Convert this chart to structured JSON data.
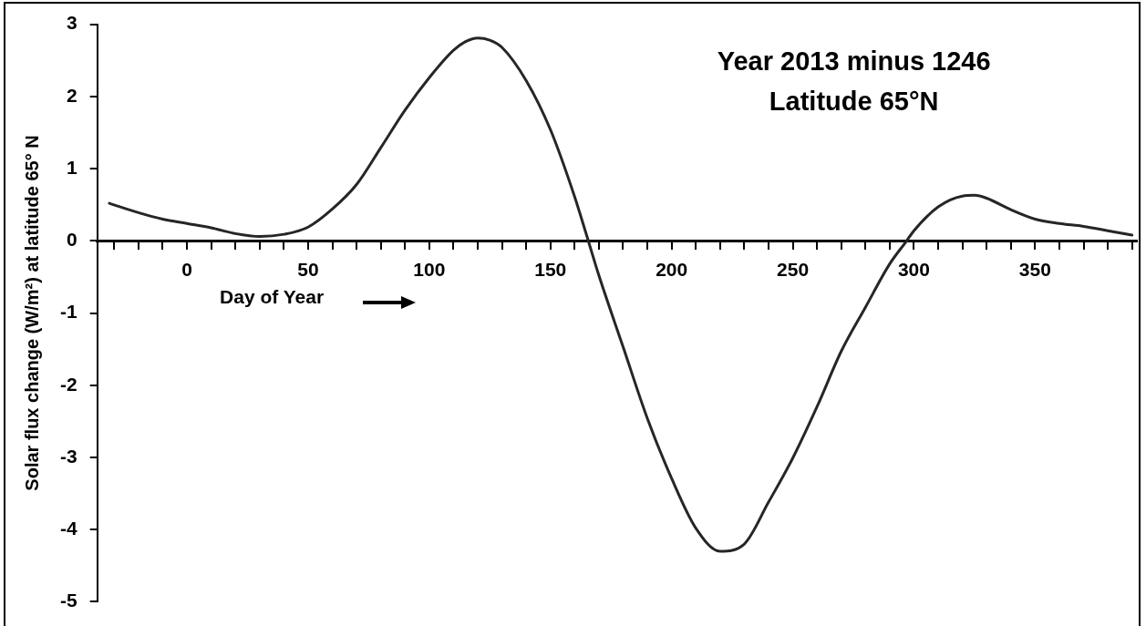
{
  "chart_data": {
    "type": "line",
    "xlabel": "Day of Year",
    "ylabel": "Solar flux change (W/m²) at latitude 65° N",
    "annotations": [
      "Year 2013 minus 1246",
      "Latitude 65°N"
    ],
    "xlim": [
      -37,
      392
    ],
    "xticks": [
      {
        "value": -30,
        "label": null
      },
      {
        "value": -20,
        "label": null
      },
      {
        "value": -10,
        "label": null
      },
      0,
      {
        "value": 10,
        "label": null
      },
      {
        "value": 20,
        "label": null
      },
      {
        "value": 30,
        "label": null
      },
      {
        "value": 40,
        "label": null
      },
      50,
      {
        "value": 60,
        "label": null
      },
      {
        "value": 70,
        "label": null
      },
      {
        "value": 80,
        "label": null
      },
      {
        "value": 90,
        "label": null
      },
      100,
      {
        "value": 110,
        "label": null
      },
      {
        "value": 120,
        "label": null
      },
      {
        "value": 130,
        "label": null
      },
      {
        "value": 140,
        "label": null
      },
      150,
      {
        "value": 160,
        "label": null
      },
      {
        "value": 170,
        "label": null
      },
      {
        "value": 180,
        "label": null
      },
      {
        "value": 190,
        "label": null
      },
      200,
      {
        "value": 210,
        "label": null
      },
      {
        "value": 220,
        "label": null
      },
      {
        "value": 230,
        "label": null
      },
      {
        "value": 240,
        "label": null
      },
      250,
      {
        "value": 260,
        "label": null
      },
      {
        "value": 270,
        "label": null
      },
      {
        "value": 280,
        "label": null
      },
      {
        "value": 290,
        "label": null
      },
      300,
      {
        "value": 310,
        "label": null
      },
      {
        "value": 320,
        "label": null
      },
      {
        "value": 330,
        "label": null
      },
      {
        "value": 340,
        "label": null
      },
      350,
      {
        "value": 360,
        "label": null
      },
      {
        "value": 370,
        "label": null
      },
      {
        "value": 380,
        "label": null
      },
      {
        "value": 390,
        "label": null
      }
    ],
    "ylim": [
      -5,
      3
    ],
    "yticks": [
      -5,
      -4,
      -3,
      -2,
      -1,
      0,
      1,
      2,
      3
    ],
    "grid": false,
    "legend": false,
    "marker": "none",
    "line_style": "solid",
    "series": [
      {
        "color": "#262626",
        "x": [
          -32,
          -20,
          -10,
          0,
          10,
          20,
          30,
          40,
          50,
          60,
          70,
          80,
          90,
          100,
          110,
          115,
          120,
          125,
          130,
          140,
          150,
          160,
          165,
          170,
          180,
          190,
          200,
          210,
          220,
          230,
          240,
          250,
          260,
          270,
          280,
          290,
          297,
          300,
          310,
          320,
          325,
          330,
          340,
          350,
          360,
          370,
          380,
          390
        ],
        "values": [
          0.52,
          0.39,
          0.3,
          0.24,
          0.18,
          0.1,
          0.06,
          0.09,
          0.19,
          0.44,
          0.78,
          1.29,
          1.81,
          2.26,
          2.64,
          2.76,
          2.81,
          2.78,
          2.68,
          2.22,
          1.54,
          0.61,
          0.07,
          -0.48,
          -1.47,
          -2.46,
          -3.29,
          -3.98,
          -4.3,
          -4.2,
          -3.62,
          -3.01,
          -2.3,
          -1.53,
          -0.92,
          -0.32,
          0,
          0.14,
          0.47,
          0.62,
          0.63,
          0.59,
          0.43,
          0.3,
          0.24,
          0.2,
          0.14,
          0.08
        ]
      }
    ]
  }
}
